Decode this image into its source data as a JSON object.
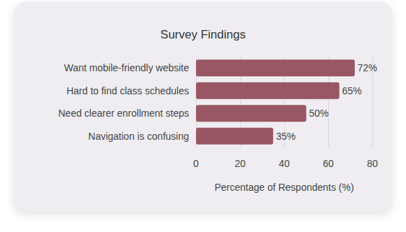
{
  "chart_data": {
    "type": "bar",
    "title": "Survey Findings",
    "orientation": "horizontal",
    "categories": [
      "Want mobile-friendly website",
      "Hard to find class schedules",
      "Need clearer enrollment steps",
      "Navigation is confusing"
    ],
    "values": [
      72,
      65,
      50,
      35
    ],
    "value_labels": [
      "72%",
      "65%",
      "50%",
      "35%"
    ],
    "data_labels": true,
    "color": "#985762",
    "x_label": "Percentage of Respondents (%)",
    "xlim": [
      0,
      80
    ],
    "xticks": [
      0,
      20,
      40,
      60,
      80
    ],
    "grid": true
  }
}
